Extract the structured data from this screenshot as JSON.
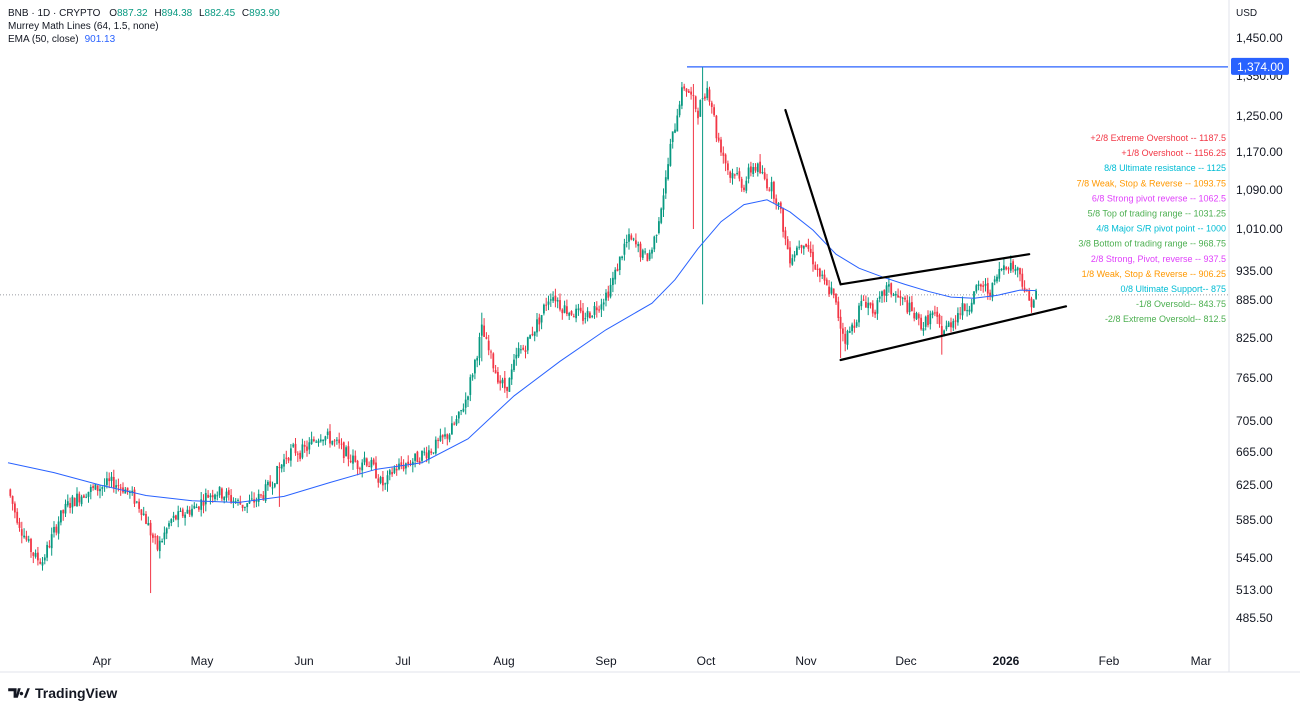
{
  "header": {
    "symbol": "BNB · 1D · CRYPTO",
    "open_label": "O",
    "open": "887.32",
    "high_label": "H",
    "high": "894.38",
    "low_label": "L",
    "low": "882.45",
    "close_label": "C",
    "close": "893.90",
    "murrey_label": "Murrey Math Lines (64, 1.5, none)",
    "ema_label": "EMA (50, close)",
    "ema_value": "901.13"
  },
  "currency": "USD",
  "brand": "TradingView",
  "colors": {
    "up": "#089981",
    "down": "#f23645",
    "ema": "#2962ff",
    "resistance_line": "#2962ff",
    "trendline": "#000000"
  },
  "chart_data": {
    "type": "candlestick",
    "timeframe": "1D",
    "x_ticks": [
      "Apr",
      "May",
      "Jun",
      "Jul",
      "Aug",
      "Sep",
      "Oct",
      "Nov",
      "Dec",
      "2026",
      "Feb",
      "Mar"
    ],
    "y_ticks": [
      1450,
      1350,
      1250,
      1170,
      1090,
      1010,
      935,
      885,
      825,
      765,
      705,
      665,
      625,
      585,
      545,
      513,
      485.5
    ],
    "y_tick_labels": [
      "1,450.00",
      "1,350.00",
      "1,250.00",
      "1,170.00",
      "1,090.00",
      "1,010.00",
      "935.00",
      "885.00",
      "825.00",
      "765.00",
      "705.00",
      "665.00",
      "625.00",
      "585.00",
      "545.00",
      "513.00",
      "485.50"
    ],
    "horizontal_line": {
      "value": 1374,
      "label": "1,374.00"
    },
    "current_price": 893.9,
    "price_path": [
      [
        0,
        620
      ],
      [
        3,
        595
      ],
      [
        6,
        575
      ],
      [
        9,
        558
      ],
      [
        12,
        545
      ],
      [
        15,
        542
      ],
      [
        18,
        560
      ],
      [
        22,
        585
      ],
      [
        26,
        602
      ],
      [
        30,
        610
      ],
      [
        34,
        618
      ],
      [
        38,
        620
      ],
      [
        42,
        625
      ],
      [
        46,
        628
      ],
      [
        50,
        622
      ],
      [
        54,
        612
      ],
      [
        58,
        598
      ],
      [
        62,
        572
      ],
      [
        65,
        555
      ],
      [
        68,
        570
      ],
      [
        71,
        585
      ],
      [
        75,
        590
      ],
      [
        78,
        595
      ],
      [
        82,
        600
      ],
      [
        86,
        612
      ],
      [
        90,
        618
      ],
      [
        94,
        614
      ],
      [
        98,
        608
      ],
      [
        102,
        602
      ],
      [
        106,
        605
      ],
      [
        110,
        612
      ],
      [
        114,
        625
      ],
      [
        118,
        645
      ],
      [
        121,
        660
      ],
      [
        124,
        668
      ],
      [
        127,
        665
      ],
      [
        130,
        670
      ],
      [
        133,
        680
      ],
      [
        136,
        688
      ],
      [
        140,
        682
      ],
      [
        144,
        672
      ],
      [
        148,
        660
      ],
      [
        152,
        650
      ],
      [
        155,
        658
      ],
      [
        158,
        648
      ],
      [
        160,
        640
      ],
      [
        162,
        628
      ],
      [
        164,
        624
      ],
      [
        166,
        636
      ],
      [
        168,
        645
      ],
      [
        171,
        648
      ],
      [
        174,
        652
      ],
      [
        177,
        656
      ],
      [
        180,
        662
      ],
      [
        184,
        668
      ],
      [
        188,
        678
      ],
      [
        192,
        690
      ],
      [
        196,
        710
      ],
      [
        199,
        735
      ],
      [
        201,
        760
      ],
      [
        203,
        790
      ],
      [
        205,
        820
      ],
      [
        206,
        838
      ],
      [
        208,
        815
      ],
      [
        210,
        795
      ],
      [
        212,
        775
      ],
      [
        214,
        760
      ],
      [
        216,
        752
      ],
      [
        218,
        760
      ],
      [
        220,
        785
      ],
      [
        222,
        805
      ],
      [
        224,
        808
      ],
      [
        226,
        820
      ],
      [
        228,
        835
      ],
      [
        230,
        848
      ],
      [
        232,
        862
      ],
      [
        234,
        882
      ],
      [
        236,
        895
      ],
      [
        238,
        890
      ],
      [
        240,
        878
      ],
      [
        242,
        872
      ],
      [
        244,
        868
      ],
      [
        246,
        865
      ],
      [
        248,
        862
      ],
      [
        250,
        858
      ],
      [
        252,
        862
      ],
      [
        254,
        868
      ],
      [
        256,
        876
      ],
      [
        258,
        885
      ],
      [
        261,
        900
      ],
      [
        264,
        930
      ],
      [
        266,
        955
      ],
      [
        268,
        980
      ],
      [
        270,
        990
      ],
      [
        272,
        985
      ],
      [
        274,
        975
      ],
      [
        276,
        962
      ],
      [
        278,
        960
      ],
      [
        280,
        975
      ],
      [
        282,
        1010
      ],
      [
        284,
        1060
      ],
      [
        286,
        1110
      ],
      [
        288,
        1180
      ],
      [
        290,
        1230
      ],
      [
        292,
        1290
      ],
      [
        294,
        1325
      ],
      [
        296,
        1310
      ],
      [
        298,
        1285
      ],
      [
        300,
        1260
      ],
      [
        302,
        1300
      ],
      [
        304,
        1320
      ],
      [
        306,
        1280
      ],
      [
        308,
        1210
      ],
      [
        310,
        1180
      ],
      [
        312,
        1150
      ],
      [
        314,
        1120
      ],
      [
        316,
        1130
      ],
      [
        318,
        1110
      ],
      [
        320,
        1100
      ],
      [
        322,
        1125
      ],
      [
        324,
        1140
      ],
      [
        326,
        1135
      ],
      [
        328,
        1120
      ],
      [
        330,
        1105
      ],
      [
        332,
        1095
      ],
      [
        334,
        1075
      ],
      [
        336,
        1040
      ],
      [
        338,
        990
      ],
      [
        340,
        960
      ],
      [
        342,
        970
      ],
      [
        344,
        985
      ],
      [
        346,
        990
      ],
      [
        348,
        975
      ],
      [
        350,
        955
      ],
      [
        352,
        935
      ],
      [
        354,
        920
      ],
      [
        356,
        905
      ],
      [
        358,
        900
      ],
      [
        360,
        875
      ],
      [
        362,
        845
      ],
      [
        364,
        825
      ],
      [
        366,
        835
      ],
      [
        368,
        850
      ],
      [
        370,
        870
      ],
      [
        372,
        885
      ],
      [
        374,
        880
      ],
      [
        376,
        870
      ],
      [
        378,
        875
      ],
      [
        380,
        890
      ],
      [
        382,
        905
      ],
      [
        384,
        900
      ],
      [
        386,
        892
      ],
      [
        388,
        885
      ],
      [
        390,
        880
      ],
      [
        392,
        870
      ],
      [
        394,
        860
      ],
      [
        396,
        850
      ],
      [
        398,
        845
      ],
      [
        400,
        855
      ],
      [
        402,
        862
      ],
      [
        404,
        850
      ],
      [
        406,
        835
      ],
      [
        408,
        840
      ],
      [
        410,
        850
      ],
      [
        412,
        860
      ],
      [
        414,
        868
      ],
      [
        416,
        872
      ],
      [
        418,
        880
      ],
      [
        420,
        895
      ],
      [
        422,
        905
      ],
      [
        424,
        910
      ],
      [
        426,
        900
      ],
      [
        428,
        905
      ],
      [
        430,
        925
      ],
      [
        432,
        940
      ],
      [
        434,
        950
      ],
      [
        436,
        945
      ],
      [
        438,
        940
      ],
      [
        440,
        932
      ],
      [
        442,
        905
      ],
      [
        444,
        882
      ],
      [
        446,
        887
      ],
      [
        447,
        893.9
      ]
    ],
    "wicks": [
      {
        "day": 62,
        "low": 510,
        "high": 585
      },
      {
        "day": 118,
        "low": 600,
        "high": 650
      },
      {
        "day": 206,
        "low": 790,
        "high": 865
      },
      {
        "day": 298,
        "low": 1010,
        "high": 1330
      },
      {
        "day": 302,
        "low": 878,
        "high": 1374
      },
      {
        "day": 362,
        "low": 795,
        "high": 870
      },
      {
        "day": 406,
        "low": 800,
        "high": 860
      }
    ],
    "ema": {
      "name": "EMA (50, close)",
      "points": [
        [
          0,
          652
        ],
        [
          20,
          640
        ],
        [
          40,
          625
        ],
        [
          60,
          613
        ],
        [
          80,
          607
        ],
        [
          100,
          605
        ],
        [
          120,
          612
        ],
        [
          140,
          628
        ],
        [
          160,
          644
        ],
        [
          180,
          652
        ],
        [
          200,
          682
        ],
        [
          220,
          740
        ],
        [
          240,
          790
        ],
        [
          260,
          838
        ],
        [
          280,
          880
        ],
        [
          290,
          920
        ],
        [
          300,
          975
        ],
        [
          310,
          1025
        ],
        [
          320,
          1060
        ],
        [
          330,
          1070
        ],
        [
          340,
          1045
        ],
        [
          350,
          1008
        ],
        [
          360,
          965
        ],
        [
          370,
          940
        ],
        [
          380,
          925
        ],
        [
          390,
          912
        ],
        [
          400,
          900
        ],
        [
          410,
          890
        ],
        [
          420,
          888
        ],
        [
          430,
          893
        ],
        [
          440,
          902
        ],
        [
          447,
          901.13
        ]
      ]
    },
    "murrey_math_lines": [
      {
        "label": "+2/8 Extreme Overshoot --  1187.5",
        "color": "#f23645"
      },
      {
        "label": "+1/8 Overshoot --  1156.25",
        "color": "#f23645"
      },
      {
        "label": "8/8 Ultimate resistance --  1125",
        "color": "#00bcd4"
      },
      {
        "label": "7/8 Weak, Stop & Reverse --  1093.75",
        "color": "#ff9800"
      },
      {
        "label": "6/8 Strong pivot reverse --  1062.5",
        "color": "#e040fb"
      },
      {
        "label": "5/8 Top of trading range --  1031.25",
        "color": "#4caf50"
      },
      {
        "label": "4/8 Major S/R pivot point --  1000",
        "color": "#00bcd4"
      },
      {
        "label": "3/8 Bottom of trading range --  968.75",
        "color": "#4caf50"
      },
      {
        "label": "2/8 Strong, Pivot, reverse --  937.5",
        "color": "#e040fb"
      },
      {
        "label": "1/8 Weak, Stop & Reverse --  906.25",
        "color": "#ff9800"
      },
      {
        "label": "0/8 Ultimate Support--  875",
        "color": "#00bcd4"
      },
      {
        "label": "-1/8 Oversold--  843.75",
        "color": "#4caf50"
      },
      {
        "label": "-2/8 Extreme Oversold--  812.5",
        "color": "#4caf50"
      }
    ],
    "trendlines": [
      {
        "name": "downtrend",
        "points": [
          [
            338,
            1265
          ],
          [
            362,
            912
          ]
        ]
      },
      {
        "name": "wedge-upper",
        "points": [
          [
            362,
            912
          ],
          [
            444,
            965
          ]
        ]
      },
      {
        "name": "wedge-lower",
        "points": [
          [
            362,
            792
          ],
          [
            460,
            875
          ]
        ]
      }
    ],
    "grid": false,
    "legend": "top-left"
  }
}
